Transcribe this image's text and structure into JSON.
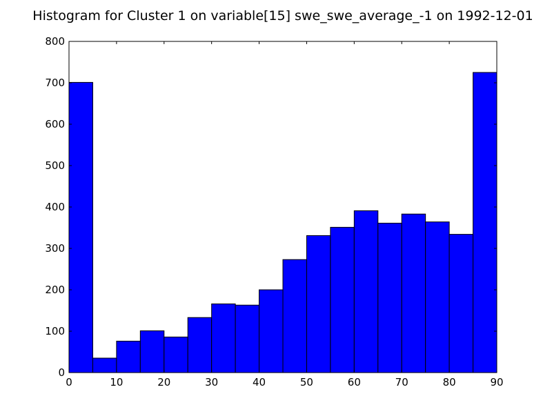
{
  "chart_data": {
    "type": "bar",
    "title": "Histogram for Cluster 1 on variable[15] swe_swe_average_-1 on 1992-12-01",
    "xlabel": "",
    "ylabel": "",
    "bin_edges": [
      0,
      5,
      10,
      15,
      20,
      25,
      30,
      35,
      40,
      45,
      50,
      55,
      60,
      65,
      70,
      75,
      80,
      85,
      90
    ],
    "values": [
      701,
      35,
      76,
      101,
      86,
      133,
      166,
      163,
      200,
      273,
      331,
      351,
      391,
      361,
      383,
      364,
      334,
      725
    ],
    "xlim": [
      0,
      90
    ],
    "ylim": [
      0,
      800
    ],
    "xticks": [
      0,
      10,
      20,
      30,
      40,
      50,
      60,
      70,
      80,
      90
    ],
    "yticks": [
      0,
      100,
      200,
      300,
      400,
      500,
      600,
      700,
      800
    ],
    "bar_color": "#0000ff",
    "edge_color": "#000000",
    "grid": false,
    "legend": "none"
  }
}
